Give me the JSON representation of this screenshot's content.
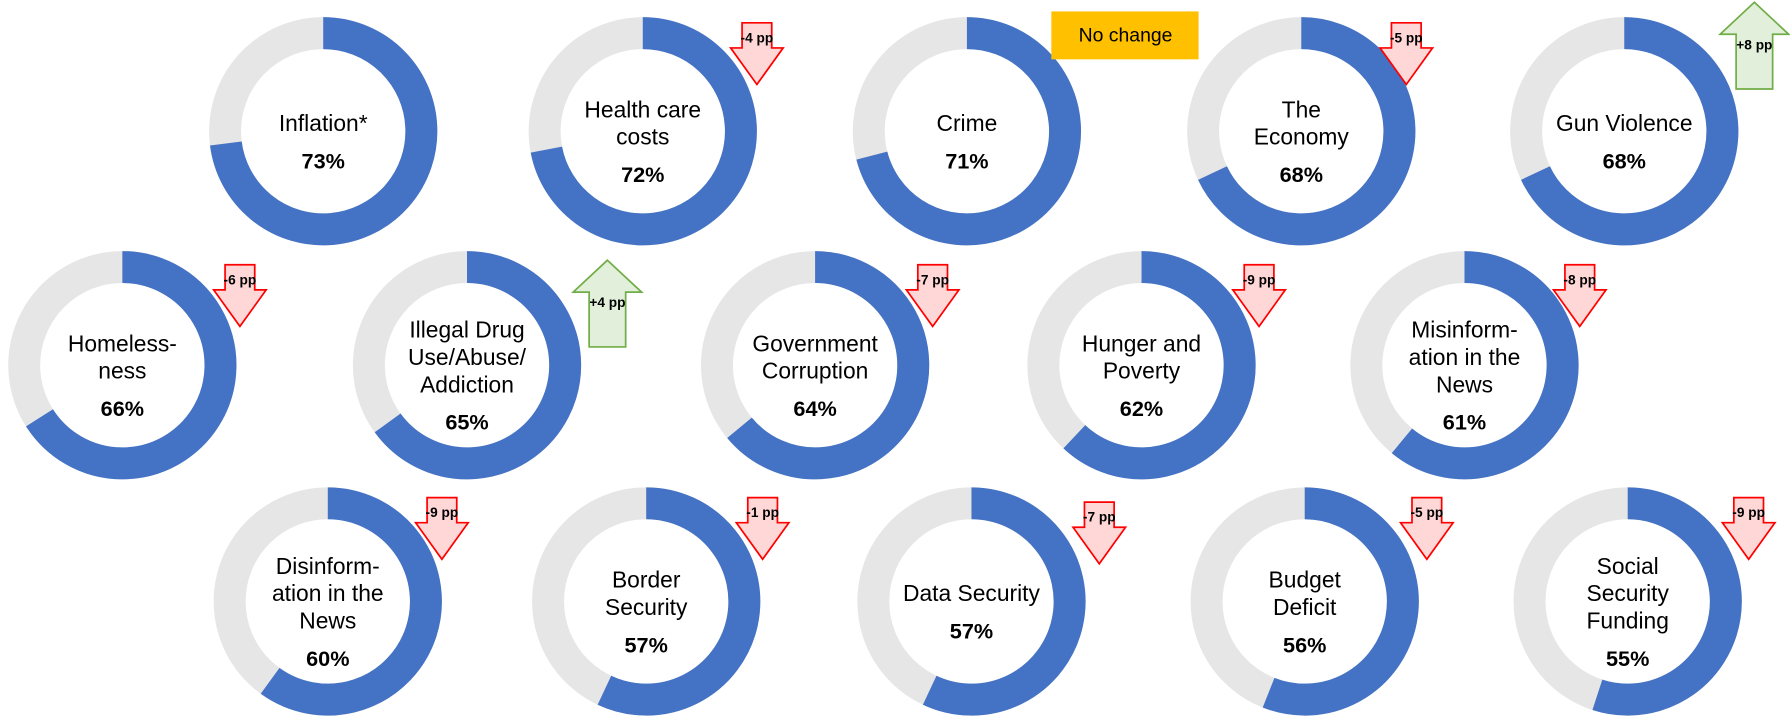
{
  "chart_data": {
    "type": "donut",
    "color": "#4472c4",
    "track_color": "#e6e6e6",
    "items": [
      {
        "label": [
          "Inflation*"
        ],
        "value": 73,
        "value_label": "73%"
      },
      {
        "label": [
          "Health care",
          "costs"
        ],
        "value": 72,
        "value_label": "72%",
        "change": {
          "value": -4,
          "label": "-4 pp"
        }
      },
      {
        "label": [
          "Crime"
        ],
        "value": 71,
        "value_label": "71%",
        "change": {
          "value": 0,
          "label": "No change"
        }
      },
      {
        "label": [
          "The",
          "Economy"
        ],
        "value": 68,
        "value_label": "68%",
        "change": {
          "value": -5,
          "label": "-5 pp"
        }
      },
      {
        "label": [
          "Gun Violence"
        ],
        "value": 68,
        "value_label": "68%",
        "change": {
          "value": 8,
          "label": "+8 pp"
        }
      },
      {
        "label": [
          "Homeless-",
          "ness"
        ],
        "value": 66,
        "value_label": "66%",
        "change": {
          "value": -6,
          "label": "-6 pp"
        }
      },
      {
        "label": [
          "Illegal Drug",
          "Use/Abuse/",
          "Addiction"
        ],
        "value": 65,
        "value_label": "65%",
        "change": {
          "value": 4,
          "label": "+4 pp"
        }
      },
      {
        "label": [
          "Government",
          "Corruption"
        ],
        "value": 64,
        "value_label": "64%",
        "change": {
          "value": -7,
          "label": "-7 pp"
        }
      },
      {
        "label": [
          "Hunger and",
          "Poverty"
        ],
        "value": 62,
        "value_label": "62%",
        "change": {
          "value": -9,
          "label": "-9 pp"
        }
      },
      {
        "label": [
          "Misinform-",
          "ation in the",
          "News"
        ],
        "value": 61,
        "value_label": "61%",
        "change": {
          "value": -8,
          "label": "-8 pp"
        }
      },
      {
        "label": [
          "Disinform-",
          "ation in the",
          "News"
        ],
        "value": 60,
        "value_label": "60%",
        "change": {
          "value": -9,
          "label": "-9 pp"
        }
      },
      {
        "label": [
          "Border",
          "Security"
        ],
        "value": 57,
        "value_label": "57%",
        "change": {
          "value": -1,
          "label": "-1 pp"
        }
      },
      {
        "label": [
          "Data Security"
        ],
        "value": 57,
        "value_label": "57%",
        "change": {
          "value": -7,
          "label": "-7 pp"
        }
      },
      {
        "label": [
          "Budget",
          "Deficit"
        ],
        "value": 56,
        "value_label": "56%",
        "change": {
          "value": -5,
          "label": "-5 pp"
        }
      },
      {
        "label": [
          "Social",
          "Security",
          "Funding"
        ],
        "value": 55,
        "value_label": "55%",
        "change": {
          "value": -9,
          "label": "-9 pp"
        }
      }
    ]
  }
}
